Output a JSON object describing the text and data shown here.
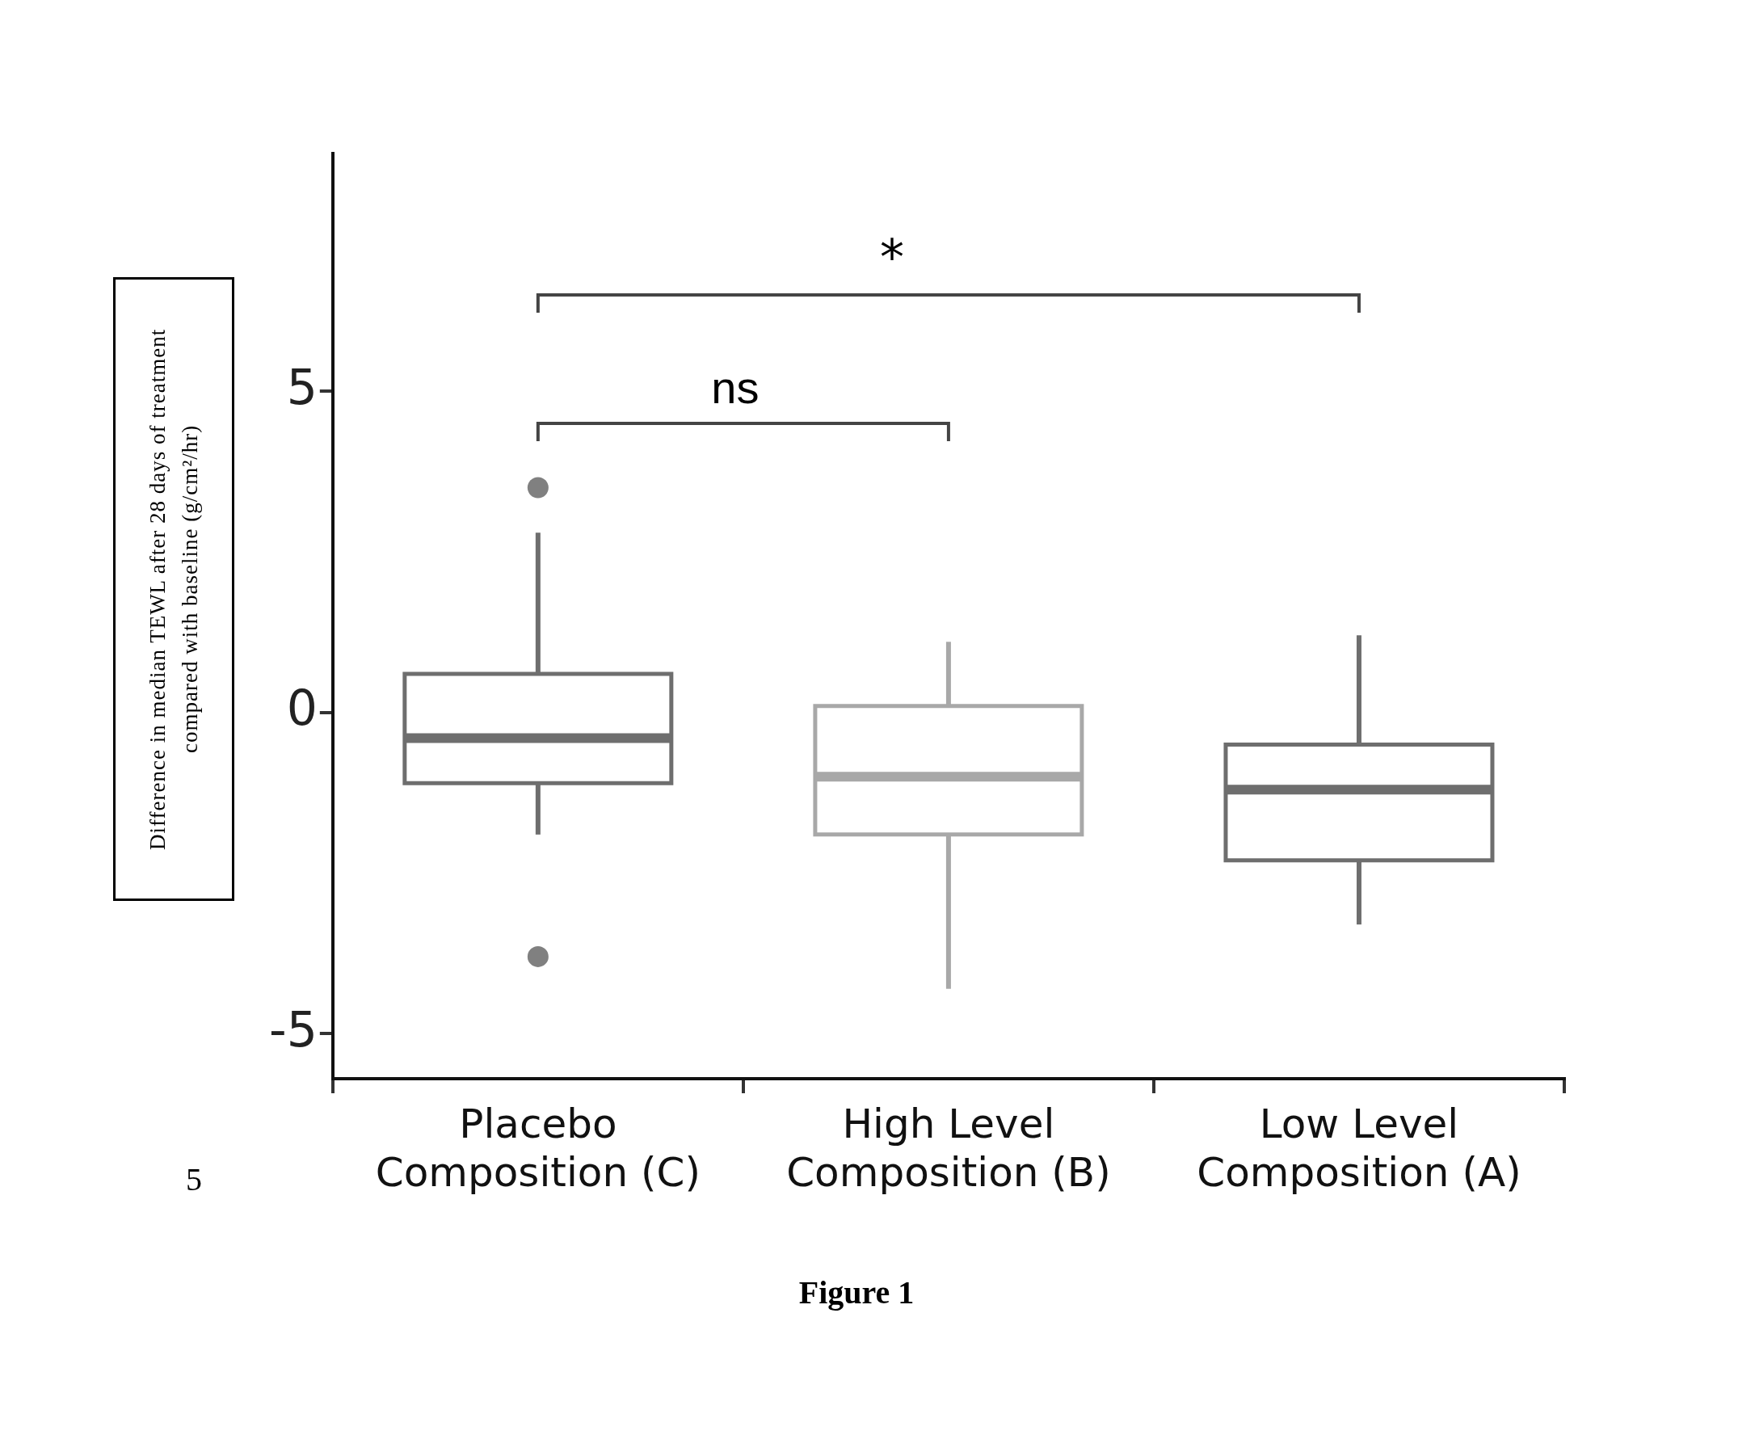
{
  "chart_data": {
    "type": "box",
    "ylabel": "Difference in median TEWL after 28 days of treatment compared with baseline (g/cm²/hr)",
    "categories": [
      "Placebo\nComposition (C)",
      "High Level\nComposition (B)",
      "Low Level\nComposition (A)"
    ],
    "colors": [
      "#6e6e6e",
      "#a8a8a8",
      "#6e6e6e"
    ],
    "boxes": [
      {
        "low": -1.9,
        "q1": -1.1,
        "median": -0.4,
        "q3": 0.6,
        "high": 2.8,
        "outliers": [
          3.5,
          -3.8
        ]
      },
      {
        "low": -4.3,
        "q1": -1.9,
        "median": -1.0,
        "q3": 0.1,
        "high": 1.1
      },
      {
        "low": -3.3,
        "q1": -2.3,
        "median": -1.2,
        "q3": -0.5,
        "high": 1.2
      }
    ],
    "ylim": [
      -5.7,
      8.7
    ],
    "yticks": [
      -5,
      0,
      5
    ],
    "annotations": [
      "*",
      "ns",
      "5",
      "Figure 1"
    ]
  }
}
